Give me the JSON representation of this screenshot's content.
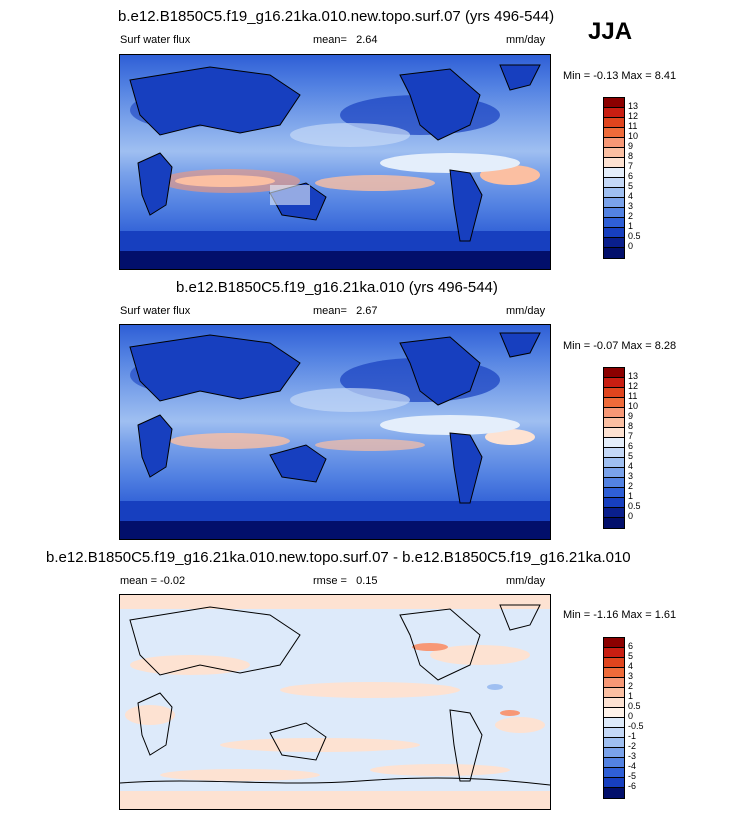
{
  "season": "JJA",
  "panels": [
    {
      "title": "b.e12.B1850C5.f19_g16.21ka.010.new.topo.surf.07 (yrs 496-544)",
      "variable": "Surf water flux",
      "mean_label": "mean=",
      "mean": "2.64",
      "units": "mm/day",
      "minmax": "Min =  -0.13 Max =   8.41",
      "levels": [
        "13",
        "12",
        "11",
        "10",
        "9",
        "8",
        "7",
        "6",
        "5",
        "4",
        "3",
        "2",
        "1",
        "0.5",
        "0"
      ],
      "colors": [
        "#8b0000",
        "#c81e12",
        "#e0451e",
        "#ef6b3a",
        "#f79876",
        "#fbbfa2",
        "#fde2d2",
        "#e4eefb",
        "#c4d8f7",
        "#9fbff1",
        "#7aa2ea",
        "#5382e2",
        "#2f5fd6",
        "#173fbf",
        "#0a1f8c",
        "#020f6b"
      ]
    },
    {
      "title": "b.e12.B1850C5.f19_g16.21ka.010 (yrs 496-544)",
      "variable": "Surf water flux",
      "mean_label": "mean=",
      "mean": "2.67",
      "units": "mm/day",
      "minmax": "Min =  -0.07 Max =   8.28",
      "levels": [
        "13",
        "12",
        "11",
        "10",
        "9",
        "8",
        "7",
        "6",
        "5",
        "4",
        "3",
        "2",
        "1",
        "0.5",
        "0"
      ],
      "colors": [
        "#8b0000",
        "#c81e12",
        "#e0451e",
        "#ef6b3a",
        "#f79876",
        "#fbbfa2",
        "#fde2d2",
        "#e4eefb",
        "#c4d8f7",
        "#9fbff1",
        "#7aa2ea",
        "#5382e2",
        "#2f5fd6",
        "#173fbf",
        "#0a1f8c",
        "#020f6b"
      ]
    },
    {
      "title": "b.e12.B1850C5.f19_g16.21ka.010.new.topo.surf.07 - b.e12.B1850C5.f19_g16.21ka.010",
      "mean_label": "mean =",
      "mean": "-0.02",
      "rmse_label": "rmse =",
      "rmse": "0.15",
      "units": "mm/day",
      "minmax": "Min =  -1.16 Max =   1.61",
      "levels": [
        "6",
        "5",
        "4",
        "3",
        "2",
        "1",
        "0.5",
        "0",
        "-0.5",
        "-1",
        "-2",
        "-3",
        "-4",
        "-5",
        "-6"
      ],
      "colors": [
        "#8b0000",
        "#c81e12",
        "#e0451e",
        "#ef6b3a",
        "#f79876",
        "#fbbfa2",
        "#fde2d2",
        "#fff3ea",
        "#ddeafa",
        "#c4d8f7",
        "#9fbff1",
        "#7aa2ea",
        "#5382e2",
        "#2f5fd6",
        "#173fbf",
        "#020f6b"
      ]
    }
  ]
}
